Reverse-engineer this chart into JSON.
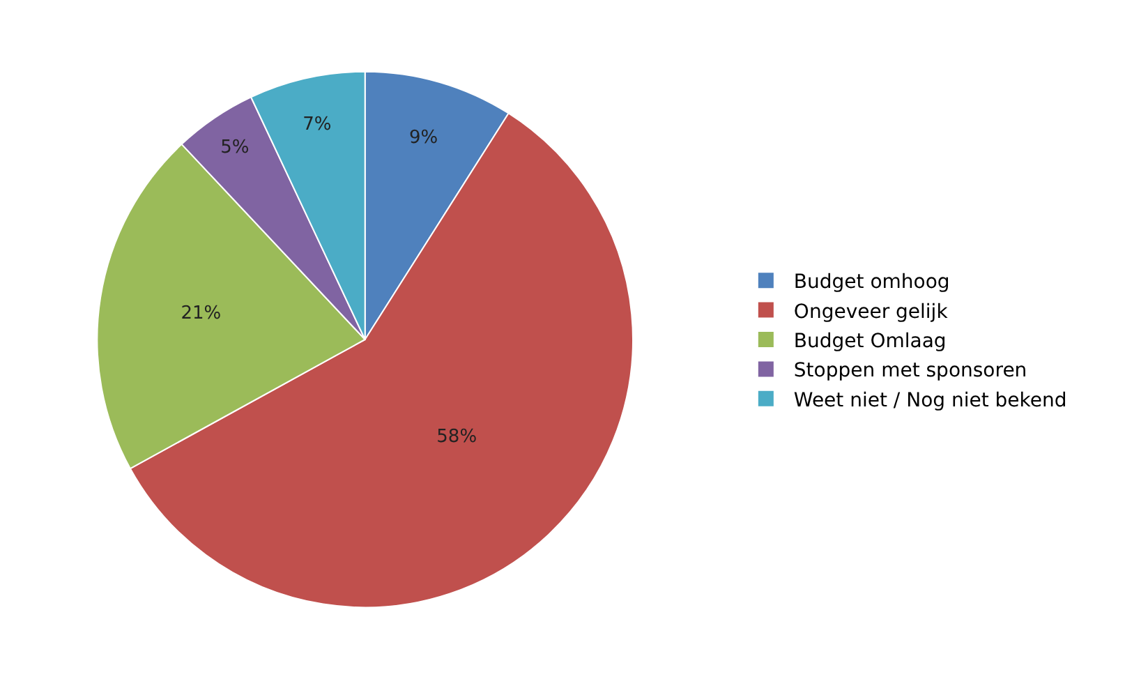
{
  "chart_data": {
    "type": "pie",
    "categories": [
      "Budget omhoog",
      "Ongeveer gelijk",
      "Budget Omlaag",
      "Stoppen met sponsoren",
      "Weet niet / Nog niet bekend"
    ],
    "values": [
      9,
      58,
      21,
      5,
      7
    ],
    "value_labels": [
      "9%",
      "58%",
      "21%",
      "5%",
      "7%"
    ],
    "colors": [
      "#4f81bd",
      "#c0504d",
      "#9bbb59",
      "#8064a2",
      "#4bacc6"
    ],
    "legend": "right"
  }
}
